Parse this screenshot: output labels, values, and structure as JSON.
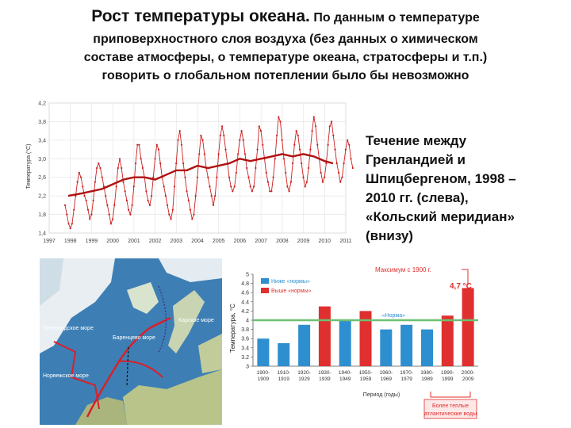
{
  "title": {
    "main": "Рост температуры океана.",
    "small": "По данным о температуре"
  },
  "subtitle_lines": [
    "приповерхностного слоя воздуха (без данных о химическом",
    "составе атмосферы, о температуре океана, стратосферы и т.п.)",
    "говорить о глобальном потеплении было бы невозможно"
  ],
  "caption_lines": [
    "Течение между",
    "Гренландией и",
    "Шпицбергеном, 1998 –",
    "2010 гг.  (слева),",
    "«Кольский меридиан»",
    "(внизу)"
  ],
  "map": {
    "labels": [
      "Гренландское море",
      "Норвежское море",
      "Баренцево море",
      "Карское море"
    ]
  },
  "chart_data": [
    {
      "type": "line",
      "ylabel": "Температура (°C)",
      "xlabel": "",
      "x_ticks": [
        "1997",
        "1998",
        "1999",
        "2000",
        "2001",
        "2002",
        "2003",
        "2004",
        "2005",
        "2006",
        "2007",
        "2008",
        "2009",
        "2010",
        "2011"
      ],
      "xlim": [
        1997,
        2011
      ],
      "y_ticks": [
        "1,4",
        "1,8",
        "2,2",
        "2,6",
        "3,0",
        "3,4",
        "3,8",
        "4,2"
      ],
      "ylim": [
        1.4,
        4.2
      ],
      "grid": true,
      "colors": {
        "line": "#cc1f1f",
        "smooth": "#b01010"
      },
      "monthly": {
        "start": 1997.75,
        "step": 0.0833,
        "values": [
          2.0,
          1.8,
          1.6,
          1.5,
          1.6,
          1.9,
          2.2,
          2.5,
          2.7,
          2.6,
          2.4,
          2.2,
          2.1,
          1.9,
          1.7,
          1.8,
          2.1,
          2.5,
          2.8,
          2.9,
          2.8,
          2.6,
          2.4,
          2.2,
          2.0,
          1.8,
          1.6,
          1.7,
          2.0,
          2.4,
          2.8,
          3.0,
          2.8,
          2.5,
          2.3,
          2.1,
          1.9,
          1.8,
          2.0,
          2.4,
          2.9,
          3.3,
          3.3,
          3.0,
          2.8,
          2.6,
          2.3,
          2.1,
          2.0,
          2.2,
          2.6,
          3.0,
          3.3,
          3.2,
          2.9,
          2.6,
          2.4,
          2.2,
          2.0,
          1.8,
          1.7,
          1.9,
          2.4,
          2.9,
          3.4,
          3.6,
          3.3,
          2.9,
          2.6,
          2.3,
          2.1,
          1.9,
          1.7,
          1.8,
          2.2,
          2.6,
          3.1,
          3.5,
          3.4,
          3.1,
          2.8,
          2.6,
          2.4,
          2.2,
          2.0,
          2.2,
          2.6,
          3.1,
          3.5,
          3.7,
          3.5,
          3.2,
          2.9,
          2.6,
          2.4,
          2.3,
          2.4,
          2.7,
          3.1,
          3.4,
          3.6,
          3.4,
          3.1,
          2.8,
          2.6,
          2.4,
          2.3,
          2.4,
          2.8,
          3.2,
          3.7,
          3.6,
          3.3,
          3.0,
          2.7,
          2.5,
          2.3,
          2.3,
          2.6,
          3.0,
          3.5,
          3.9,
          3.8,
          3.4,
          3.0,
          2.7,
          2.4,
          2.3,
          2.5,
          2.9,
          3.3,
          3.6,
          3.5,
          3.2,
          2.9,
          2.6,
          2.4,
          2.5,
          2.8,
          3.2,
          3.6,
          3.9,
          3.7,
          3.3,
          3.0,
          2.7,
          2.5,
          2.6,
          2.9,
          3.3,
          3.7,
          3.8,
          3.5,
          3.2,
          2.9,
          2.7,
          2.5,
          2.6,
          2.9,
          3.2,
          3.4,
          3.3,
          3.0,
          2.8
        ]
      },
      "smoothed": {
        "x": [
          1997.9,
          1998.5,
          1999.0,
          1999.5,
          2000.0,
          2000.5,
          2001.0,
          2001.5,
          2002.0,
          2002.5,
          2003.0,
          2003.5,
          2004.0,
          2004.5,
          2005.0,
          2005.5,
          2006.0,
          2006.5,
          2007.0,
          2007.5,
          2008.0,
          2008.5,
          2009.0,
          2009.5,
          2010.0,
          2010.4
        ],
        "y": [
          2.2,
          2.25,
          2.3,
          2.35,
          2.45,
          2.55,
          2.6,
          2.6,
          2.55,
          2.65,
          2.75,
          2.75,
          2.85,
          2.8,
          2.85,
          2.9,
          3.0,
          2.95,
          3.0,
          3.05,
          3.1,
          3.05,
          3.1,
          3.05,
          2.95,
          2.9
        ]
      }
    },
    {
      "type": "bar",
      "ylabel": "Температура, °C",
      "xlabel": "Период (годы)",
      "categories": [
        "1900-1909",
        "1910-1919",
        "1920-1929",
        "1930-1939",
        "1940-1949",
        "1950-1959",
        "1960-1969",
        "1970-1979",
        "1980-1989",
        "1990-1999",
        "2000-2009"
      ],
      "series": [
        {
          "name": "Ниже «нормы»",
          "values": [
            3.6,
            3.5,
            3.9,
            null,
            4.0,
            null,
            3.8,
            3.9,
            3.8,
            null,
            null
          ]
        },
        {
          "name": "Выше «нормы»",
          "values": [
            null,
            null,
            null,
            4.3,
            null,
            4.2,
            null,
            null,
            null,
            4.1,
            4.7
          ]
        }
      ],
      "norm_value": 4.0,
      "norm_label": "«Норма»",
      "max_label": "Максимум с 1900 г.",
      "max_value_label": "4,7 °C",
      "bracket_label_lines": [
        "Более теплые",
        "атлантические воды"
      ],
      "y_ticks": [
        "3",
        "3.2",
        "3.4",
        "3.6",
        "3.8",
        "4",
        "4.2",
        "4.4",
        "4.6",
        "4.8",
        "5"
      ],
      "ylim": [
        3.0,
        5.0
      ],
      "colors": {
        "below": "#2e8fd0",
        "above": "#e02f2f",
        "norm": "#6cc070"
      }
    }
  ]
}
